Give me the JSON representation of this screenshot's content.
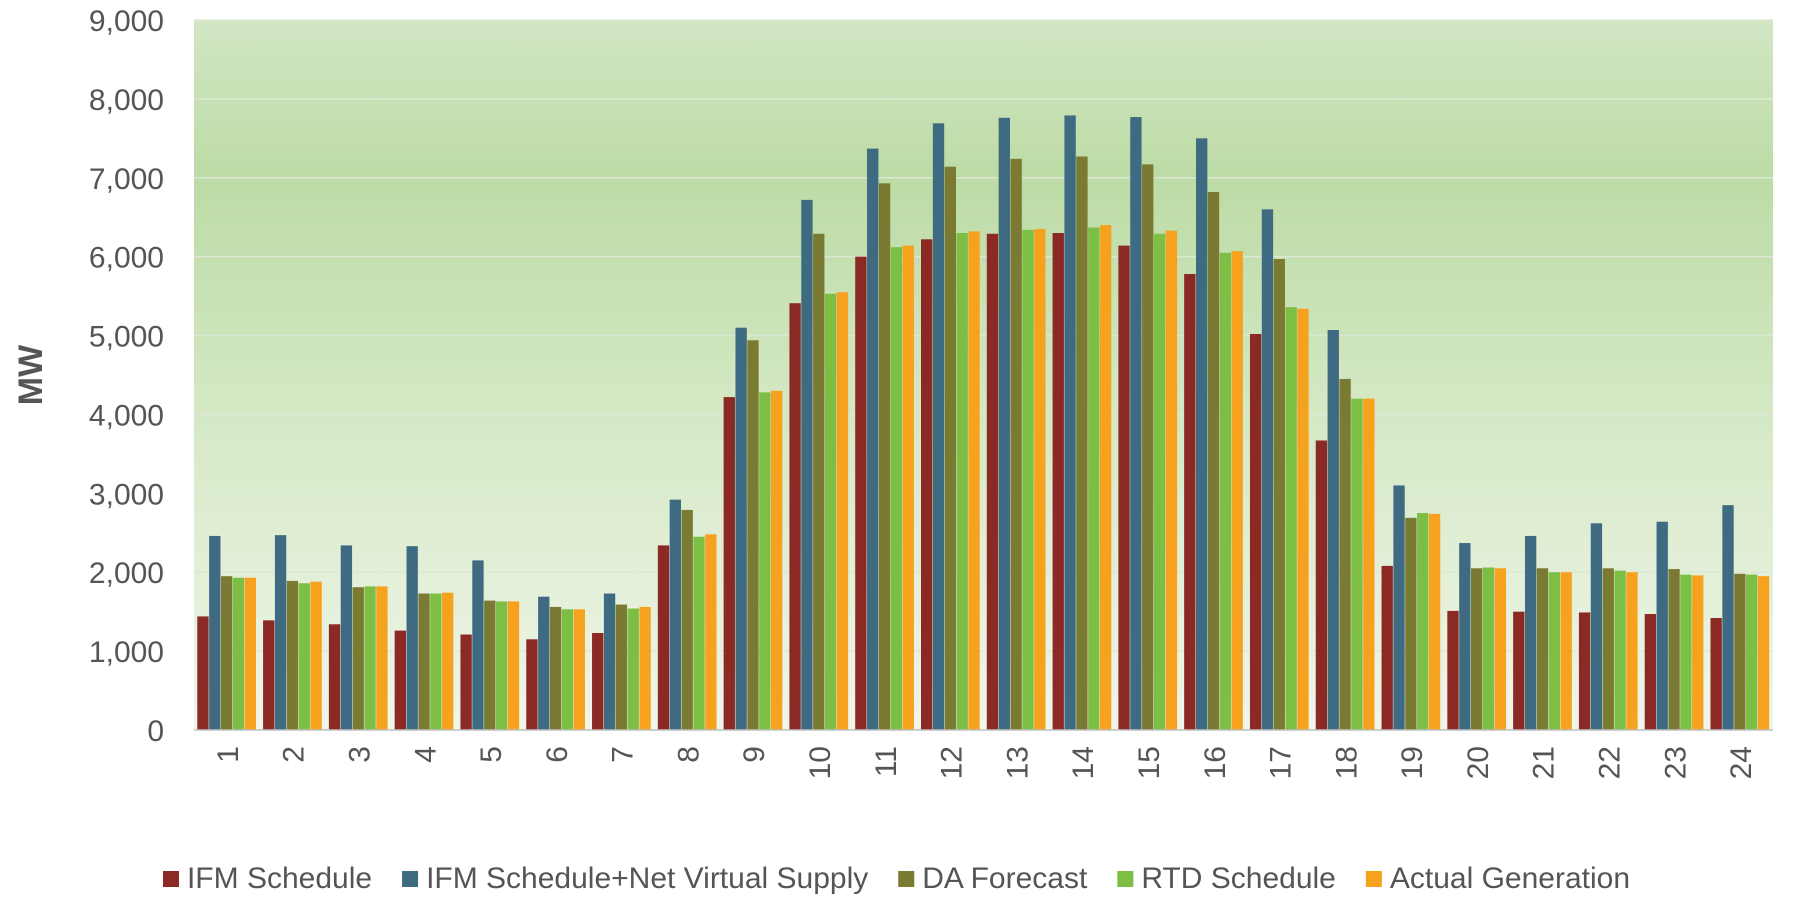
{
  "chart_data": {
    "type": "bar",
    "title": "",
    "xlabel": "",
    "ylabel": "MW",
    "ylim": [
      0,
      9000
    ],
    "yticks": [
      0,
      1000,
      2000,
      3000,
      4000,
      5000,
      6000,
      7000,
      8000,
      9000
    ],
    "ytick_labels": [
      "0",
      "1,000",
      "2,000",
      "3,000",
      "4,000",
      "5,000",
      "6,000",
      "7,000",
      "8,000",
      "9,000"
    ],
    "grid": true,
    "legend_position": "bottom",
    "categories": [
      "1",
      "2",
      "3",
      "4",
      "5",
      "6",
      "7",
      "8",
      "9",
      "10",
      "11",
      "12",
      "13",
      "14",
      "15",
      "16",
      "17",
      "18",
      "19",
      "20",
      "21",
      "22",
      "23",
      "24"
    ],
    "series": [
      {
        "name": "IFM Schedule",
        "color": "#8B2A24",
        "values": [
          1440,
          1390,
          1340,
          1260,
          1210,
          1150,
          1230,
          2340,
          4220,
          5410,
          6000,
          6220,
          6290,
          6300,
          6140,
          5780,
          5020,
          3670,
          2080,
          1510,
          1500,
          1490,
          1470,
          1420
        ]
      },
      {
        "name": "IFM Schedule+Net Virtual Supply",
        "color": "#3E6B82",
        "values": [
          2460,
          2470,
          2340,
          2330,
          2150,
          1690,
          1730,
          2920,
          5100,
          6720,
          7370,
          7690,
          7760,
          7790,
          7770,
          7500,
          6600,
          5070,
          3100,
          2370,
          2460,
          2620,
          2640,
          2850
        ]
      },
      {
        "name": "DA Forecast",
        "color": "#7B7A33",
        "values": [
          1950,
          1890,
          1810,
          1730,
          1640,
          1560,
          1590,
          2790,
          4940,
          6290,
          6930,
          7140,
          7240,
          7270,
          7170,
          6820,
          5970,
          4450,
          2690,
          2050,
          2050,
          2050,
          2040,
          1980
        ]
      },
      {
        "name": "RTD Schedule",
        "color": "#7DBE45",
        "values": [
          1930,
          1860,
          1820,
          1730,
          1630,
          1530,
          1540,
          2450,
          4280,
          5530,
          6120,
          6300,
          6340,
          6370,
          6290,
          6050,
          5360,
          4200,
          2750,
          2060,
          2000,
          2020,
          1970,
          1970
        ]
      },
      {
        "name": "Actual Generation",
        "color": "#F6A21E",
        "values": [
          1930,
          1880,
          1820,
          1740,
          1630,
          1530,
          1560,
          2480,
          4300,
          5550,
          6140,
          6320,
          6350,
          6400,
          6330,
          6070,
          5340,
          4200,
          2740,
          2050,
          2000,
          2000,
          1960,
          1950
        ]
      }
    ]
  }
}
